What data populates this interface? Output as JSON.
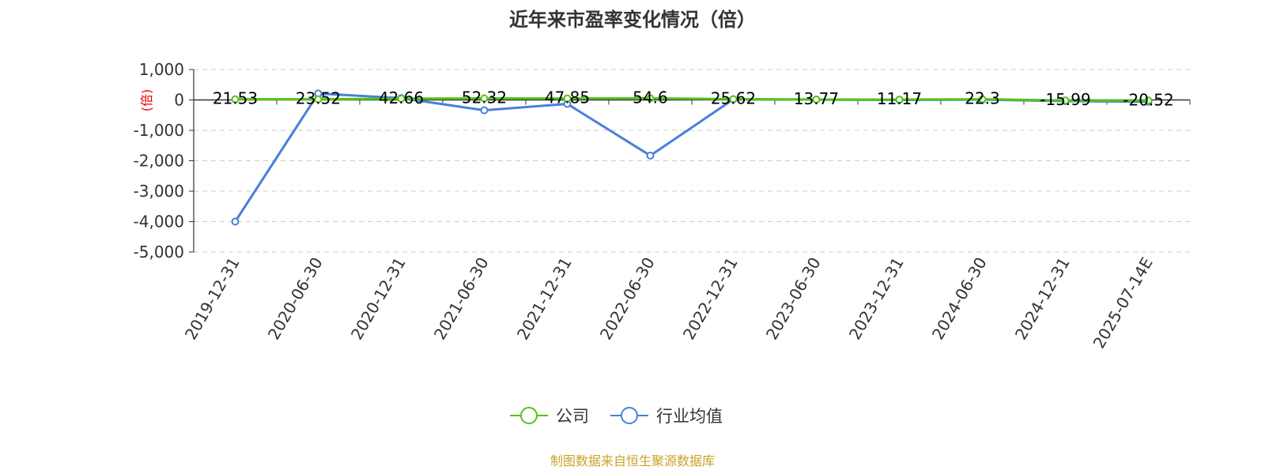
{
  "chart_data": {
    "type": "line",
    "title": "近年来市盈率变化情况（倍）",
    "ylabel": "(倍)",
    "xlabel": "",
    "categories": [
      "2019-12-31",
      "2020-06-30",
      "2020-12-31",
      "2021-06-30",
      "2021-12-31",
      "2022-06-30",
      "2022-12-31",
      "2023-06-30",
      "2023-12-31",
      "2024-06-30",
      "2024-12-31",
      "2025-07-14E"
    ],
    "series": [
      {
        "name": "公司",
        "color": "#52c41a",
        "values": [
          21.53,
          23.52,
          42.66,
          52.32,
          47.85,
          54.6,
          25.62,
          13.77,
          11.17,
          22.3,
          -15.99,
          -20.52
        ],
        "labels": [
          "21.53",
          "23.52",
          "42.66",
          "52.32",
          "47.85",
          "54.6",
          "25.62",
          "13.77",
          "11.17",
          "22.3",
          "-15.99",
          "-20.52"
        ]
      },
      {
        "name": "行业均值",
        "color": "#4a7fd9",
        "values": [
          -4000,
          210,
          60,
          -340,
          -130,
          -1830,
          20,
          10,
          0,
          10,
          -40,
          -60
        ]
      }
    ],
    "ylim": [
      -5000,
      1000
    ],
    "yticks": [
      1000,
      0,
      -1000,
      -2000,
      -3000,
      -4000,
      -5000
    ],
    "ytick_labels": [
      "1,000",
      "0",
      "-1,000",
      "-2,000",
      "-3,000",
      "-4,000",
      "-5,000"
    ],
    "grid": true,
    "legend_position": "bottom-center"
  },
  "source_text": "制图数据来自恒生聚源数据库"
}
